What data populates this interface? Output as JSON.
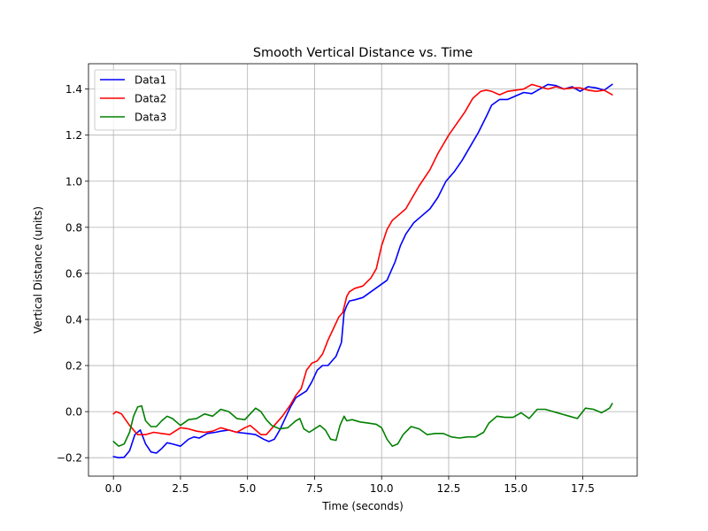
{
  "chart_data": {
    "type": "line",
    "title": "Smooth Vertical Distance vs. Time",
    "xlabel": "Time (seconds)",
    "ylabel": "Vertical Distance (units)",
    "xlim": [
      -0.93,
      19.53
    ],
    "ylim": [
      -0.28,
      1.51
    ],
    "xticks": [
      0.0,
      2.5,
      5.0,
      7.5,
      10.0,
      12.5,
      15.0,
      17.5
    ],
    "xtick_labels": [
      "0.0",
      "2.5",
      "5.0",
      "7.5",
      "10.0",
      "12.5",
      "15.0",
      "17.5"
    ],
    "yticks": [
      -0.2,
      0.0,
      0.2,
      0.4,
      0.6,
      0.8,
      1.0,
      1.2,
      1.4
    ],
    "ytick_labels": [
      "−0.2",
      "0.0",
      "0.2",
      "0.4",
      "0.6",
      "0.8",
      "1.0",
      "1.2",
      "1.4"
    ],
    "grid": true,
    "legend_position": "top-left",
    "series": [
      {
        "name": "Data1",
        "color": "#0000ff",
        "x": [
          0.0,
          0.2,
          0.4,
          0.6,
          0.8,
          1.0,
          1.2,
          1.4,
          1.6,
          1.8,
          2.0,
          2.2,
          2.5,
          2.8,
          3.0,
          3.2,
          3.5,
          3.8,
          4.0,
          4.3,
          4.6,
          5.0,
          5.3,
          5.6,
          5.8,
          6.0,
          6.2,
          6.4,
          6.6,
          6.8,
          7.0,
          7.2,
          7.4,
          7.6,
          7.8,
          8.0,
          8.3,
          8.5,
          8.6,
          8.7,
          8.8,
          9.0,
          9.3,
          9.6,
          9.9,
          10.2,
          10.5,
          10.7,
          10.9,
          11.2,
          11.5,
          11.8,
          12.1,
          12.4,
          12.7,
          13.0,
          13.3,
          13.6,
          13.9,
          14.1,
          14.4,
          14.7,
          15.0,
          15.3,
          15.6,
          15.9,
          16.2,
          16.5,
          16.8,
          17.1,
          17.4,
          17.7,
          18.0,
          18.3,
          18.6
        ],
        "y": [
          -0.195,
          -0.2,
          -0.198,
          -0.17,
          -0.1,
          -0.08,
          -0.14,
          -0.175,
          -0.18,
          -0.16,
          -0.135,
          -0.14,
          -0.15,
          -0.12,
          -0.11,
          -0.115,
          -0.095,
          -0.09,
          -0.085,
          -0.08,
          -0.09,
          -0.095,
          -0.1,
          -0.12,
          -0.13,
          -0.12,
          -0.08,
          -0.03,
          0.02,
          0.06,
          0.075,
          0.09,
          0.13,
          0.18,
          0.2,
          0.2,
          0.24,
          0.3,
          0.43,
          0.46,
          0.48,
          0.485,
          0.495,
          0.52,
          0.545,
          0.57,
          0.65,
          0.72,
          0.77,
          0.82,
          0.85,
          0.88,
          0.93,
          1.0,
          1.04,
          1.09,
          1.15,
          1.21,
          1.28,
          1.33,
          1.355,
          1.355,
          1.37,
          1.385,
          1.38,
          1.4,
          1.42,
          1.415,
          1.4,
          1.41,
          1.39,
          1.41,
          1.405,
          1.395,
          1.42
        ]
      },
      {
        "name": "Data2",
        "color": "#ff0000",
        "x": [
          0.0,
          0.1,
          0.3,
          0.6,
          0.9,
          1.2,
          1.5,
          1.8,
          2.1,
          2.5,
          2.8,
          3.1,
          3.4,
          3.7,
          4.0,
          4.3,
          4.6,
          4.9,
          5.1,
          5.3,
          5.5,
          5.7,
          6.0,
          6.3,
          6.6,
          6.8,
          7.0,
          7.2,
          7.4,
          7.6,
          7.8,
          8.0,
          8.2,
          8.4,
          8.55,
          8.7,
          8.8,
          9.0,
          9.3,
          9.6,
          9.8,
          10.0,
          10.2,
          10.4,
          10.6,
          10.9,
          11.1,
          11.4,
          11.8,
          12.1,
          12.5,
          12.8,
          13.1,
          13.4,
          13.7,
          13.9,
          14.1,
          14.4,
          14.7,
          15.0,
          15.3,
          15.6,
          15.9,
          16.2,
          16.5,
          16.8,
          17.1,
          17.4,
          17.7,
          18.0,
          18.3,
          18.6
        ],
        "y": [
          -0.01,
          0.0,
          -0.01,
          -0.06,
          -0.1,
          -0.1,
          -0.09,
          -0.095,
          -0.1,
          -0.07,
          -0.075,
          -0.085,
          -0.09,
          -0.085,
          -0.07,
          -0.08,
          -0.09,
          -0.07,
          -0.06,
          -0.08,
          -0.1,
          -0.1,
          -0.06,
          -0.02,
          0.03,
          0.07,
          0.1,
          0.18,
          0.21,
          0.22,
          0.25,
          0.31,
          0.36,
          0.41,
          0.43,
          0.5,
          0.52,
          0.535,
          0.545,
          0.58,
          0.62,
          0.72,
          0.79,
          0.83,
          0.85,
          0.88,
          0.92,
          0.98,
          1.05,
          1.12,
          1.2,
          1.25,
          1.3,
          1.36,
          1.39,
          1.395,
          1.39,
          1.375,
          1.39,
          1.395,
          1.4,
          1.42,
          1.41,
          1.4,
          1.41,
          1.4,
          1.405,
          1.405,
          1.395,
          1.39,
          1.395,
          1.375
        ]
      },
      {
        "name": "Data3",
        "color": "#008000",
        "x": [
          0.0,
          0.2,
          0.4,
          0.6,
          0.75,
          0.9,
          1.05,
          1.2,
          1.4,
          1.6,
          1.8,
          2.0,
          2.2,
          2.5,
          2.8,
          3.1,
          3.4,
          3.7,
          4.0,
          4.3,
          4.6,
          4.9,
          5.1,
          5.3,
          5.5,
          5.7,
          5.9,
          6.2,
          6.5,
          6.8,
          6.95,
          7.1,
          7.3,
          7.5,
          7.7,
          7.9,
          8.1,
          8.3,
          8.45,
          8.6,
          8.7,
          8.9,
          9.2,
          9.5,
          9.8,
          10.0,
          10.2,
          10.4,
          10.6,
          10.8,
          11.1,
          11.4,
          11.7,
          12.0,
          12.3,
          12.6,
          12.9,
          13.2,
          13.5,
          13.8,
          14.0,
          14.3,
          14.6,
          14.9,
          15.2,
          15.5,
          15.8,
          16.1,
          16.4,
          16.7,
          17.0,
          17.3,
          17.6,
          17.9,
          18.2,
          18.5,
          18.6
        ],
        "y": [
          -0.13,
          -0.15,
          -0.14,
          -0.09,
          -0.02,
          0.02,
          0.025,
          -0.04,
          -0.065,
          -0.065,
          -0.04,
          -0.02,
          -0.03,
          -0.06,
          -0.035,
          -0.03,
          -0.01,
          -0.02,
          0.01,
          0.0,
          -0.03,
          -0.035,
          -0.01,
          0.015,
          0.0,
          -0.035,
          -0.06,
          -0.075,
          -0.07,
          -0.04,
          -0.03,
          -0.075,
          -0.09,
          -0.075,
          -0.06,
          -0.08,
          -0.12,
          -0.125,
          -0.06,
          -0.02,
          -0.04,
          -0.035,
          -0.045,
          -0.05,
          -0.055,
          -0.07,
          -0.12,
          -0.15,
          -0.14,
          -0.1,
          -0.065,
          -0.075,
          -0.1,
          -0.095,
          -0.095,
          -0.11,
          -0.115,
          -0.11,
          -0.11,
          -0.09,
          -0.05,
          -0.02,
          -0.025,
          -0.025,
          -0.005,
          -0.03,
          0.01,
          0.01,
          0.0,
          -0.01,
          -0.02,
          -0.03,
          0.015,
          0.01,
          -0.005,
          0.015,
          0.035
        ]
      }
    ]
  }
}
